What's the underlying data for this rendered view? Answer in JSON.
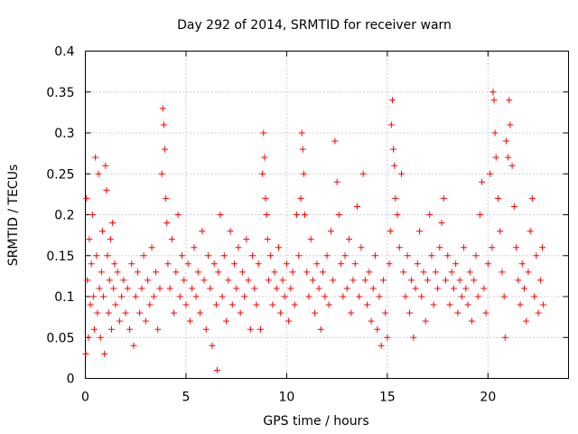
{
  "chart_data": {
    "type": "scatter",
    "title": "Day 292 of 2014, SRMTID for receiver warn",
    "xlabel": "GPS time / hours",
    "ylabel": "SRMTID / TECUs",
    "xlim": [
      0,
      24
    ],
    "ylim": [
      0,
      0.4
    ],
    "xticks": [
      0,
      5,
      10,
      15,
      20
    ],
    "xtick_labels": [
      "0",
      "5",
      "10",
      "15",
      "20"
    ],
    "yticks": [
      0,
      0.05,
      0.1,
      0.15,
      0.2,
      0.25,
      0.3,
      0.35,
      0.4
    ],
    "ytick_labels": [
      "0",
      "0.05",
      "0.1",
      "0.15",
      "0.2",
      "0.25",
      "0.3",
      "0.35",
      "0.4"
    ],
    "grid": true,
    "marker": "+",
    "color": "#ff0000",
    "series": [
      {
        "name": "SRMTID",
        "points": [
          [
            0.02,
            0.03
          ],
          [
            0.05,
            0.22
          ],
          [
            0.1,
            0.12
          ],
          [
            0.15,
            0.05
          ],
          [
            0.2,
            0.17
          ],
          [
            0.25,
            0.09
          ],
          [
            0.3,
            0.14
          ],
          [
            0.35,
            0.2
          ],
          [
            0.4,
            0.1
          ],
          [
            0.45,
            0.06
          ],
          [
            0.5,
            0.27
          ],
          [
            0.55,
            0.15
          ],
          [
            0.6,
            0.08
          ],
          [
            0.65,
            0.25
          ],
          [
            0.7,
            0.11
          ],
          [
            0.75,
            0.05
          ],
          [
            0.8,
            0.13
          ],
          [
            0.85,
            0.18
          ],
          [
            0.9,
            0.1
          ],
          [
            0.95,
            0.03
          ],
          [
            1.0,
            0.26
          ],
          [
            1.05,
            0.23
          ],
          [
            1.1,
            0.15
          ],
          [
            1.15,
            0.08
          ],
          [
            1.2,
            0.12
          ],
          [
            1.25,
            0.17
          ],
          [
            1.3,
            0.06
          ],
          [
            1.35,
            0.19
          ],
          [
            1.4,
            0.11
          ],
          [
            1.45,
            0.14
          ],
          [
            1.5,
            0.09
          ],
          [
            1.6,
            0.13
          ],
          [
            1.7,
            0.07
          ],
          [
            1.8,
            0.1
          ],
          [
            1.9,
            0.12
          ],
          [
            2.0,
            0.08
          ],
          [
            2.1,
            0.11
          ],
          [
            2.2,
            0.06
          ],
          [
            2.3,
            0.14
          ],
          [
            2.4,
            0.04
          ],
          [
            2.5,
            0.1
          ],
          [
            2.6,
            0.13
          ],
          [
            2.7,
            0.08
          ],
          [
            2.8,
            0.11
          ],
          [
            2.9,
            0.15
          ],
          [
            3.0,
            0.07
          ],
          [
            3.1,
            0.12
          ],
          [
            3.2,
            0.09
          ],
          [
            3.3,
            0.16
          ],
          [
            3.4,
            0.1
          ],
          [
            3.5,
            0.13
          ],
          [
            3.6,
            0.06
          ],
          [
            3.7,
            0.11
          ],
          [
            3.8,
            0.25
          ],
          [
            3.85,
            0.33
          ],
          [
            3.9,
            0.31
          ],
          [
            3.95,
            0.28
          ],
          [
            4.0,
            0.22
          ],
          [
            4.05,
            0.19
          ],
          [
            4.1,
            0.14
          ],
          [
            4.2,
            0.11
          ],
          [
            4.3,
            0.17
          ],
          [
            4.4,
            0.08
          ],
          [
            4.5,
            0.13
          ],
          [
            4.6,
            0.2
          ],
          [
            4.7,
            0.1
          ],
          [
            4.8,
            0.15
          ],
          [
            4.9,
            0.12
          ],
          [
            5.0,
            0.09
          ],
          [
            5.1,
            0.14
          ],
          [
            5.2,
            0.07
          ],
          [
            5.3,
            0.11
          ],
          [
            5.4,
            0.16
          ],
          [
            5.5,
            0.1
          ],
          [
            5.6,
            0.13
          ],
          [
            5.7,
            0.08
          ],
          [
            5.8,
            0.18
          ],
          [
            5.9,
            0.12
          ],
          [
            6.0,
            0.06
          ],
          [
            6.1,
            0.15
          ],
          [
            6.2,
            0.11
          ],
          [
            6.3,
            0.04
          ],
          [
            6.4,
            0.14
          ],
          [
            6.5,
            0.09
          ],
          [
            6.55,
            0.01
          ],
          [
            6.6,
            0.13
          ],
          [
            6.7,
            0.2
          ],
          [
            6.8,
            0.1
          ],
          [
            6.9,
            0.15
          ],
          [
            7.0,
            0.07
          ],
          [
            7.1,
            0.12
          ],
          [
            7.2,
            0.18
          ],
          [
            7.3,
            0.09
          ],
          [
            7.4,
            0.14
          ],
          [
            7.5,
            0.11
          ],
          [
            7.6,
            0.16
          ],
          [
            7.7,
            0.08
          ],
          [
            7.8,
            0.13
          ],
          [
            7.9,
            0.1
          ],
          [
            8.0,
            0.17
          ],
          [
            8.1,
            0.12
          ],
          [
            8.2,
            0.06
          ],
          [
            8.3,
            0.15
          ],
          [
            8.4,
            0.11
          ],
          [
            8.5,
            0.09
          ],
          [
            8.6,
            0.14
          ],
          [
            8.7,
            0.06
          ],
          [
            8.8,
            0.25
          ],
          [
            8.85,
            0.3
          ],
          [
            8.9,
            0.27
          ],
          [
            8.95,
            0.22
          ],
          [
            9.0,
            0.2
          ],
          [
            9.05,
            0.17
          ],
          [
            9.1,
            0.12
          ],
          [
            9.2,
            0.15
          ],
          [
            9.3,
            0.09
          ],
          [
            9.4,
            0.13
          ],
          [
            9.5,
            0.11
          ],
          [
            9.6,
            0.16
          ],
          [
            9.7,
            0.08
          ],
          [
            9.8,
            0.12
          ],
          [
            9.9,
            0.1
          ],
          [
            10.0,
            0.14
          ],
          [
            10.1,
            0.07
          ],
          [
            10.2,
            0.11
          ],
          [
            10.3,
            0.13
          ],
          [
            10.4,
            0.09
          ],
          [
            10.5,
            0.2
          ],
          [
            10.6,
            0.15
          ],
          [
            10.7,
            0.22
          ],
          [
            10.75,
            0.3
          ],
          [
            10.8,
            0.28
          ],
          [
            10.85,
            0.25
          ],
          [
            10.9,
            0.2
          ],
          [
            11.0,
            0.13
          ],
          [
            11.1,
            0.1
          ],
          [
            11.2,
            0.17
          ],
          [
            11.3,
            0.12
          ],
          [
            11.4,
            0.08
          ],
          [
            11.5,
            0.14
          ],
          [
            11.6,
            0.11
          ],
          [
            11.7,
            0.06
          ],
          [
            11.8,
            0.13
          ],
          [
            11.9,
            0.1
          ],
          [
            12.0,
            0.15
          ],
          [
            12.1,
            0.09
          ],
          [
            12.2,
            0.18
          ],
          [
            12.3,
            0.12
          ],
          [
            12.4,
            0.29
          ],
          [
            12.5,
            0.24
          ],
          [
            12.6,
            0.2
          ],
          [
            12.7,
            0.14
          ],
          [
            12.8,
            0.1
          ],
          [
            12.9,
            0.15
          ],
          [
            13.0,
            0.11
          ],
          [
            13.1,
            0.17
          ],
          [
            13.2,
            0.08
          ],
          [
            13.3,
            0.12
          ],
          [
            13.4,
            0.14
          ],
          [
            13.5,
            0.21
          ],
          [
            13.6,
            0.1
          ],
          [
            13.7,
            0.16
          ],
          [
            13.8,
            0.25
          ],
          [
            13.9,
            0.12
          ],
          [
            14.0,
            0.09
          ],
          [
            14.1,
            0.13
          ],
          [
            14.2,
            0.07
          ],
          [
            14.3,
            0.11
          ],
          [
            14.4,
            0.15
          ],
          [
            14.5,
            0.06
          ],
          [
            14.6,
            0.1
          ],
          [
            14.7,
            0.04
          ],
          [
            14.8,
            0.12
          ],
          [
            14.9,
            0.08
          ],
          [
            15.0,
            0.05
          ],
          [
            15.1,
            0.14
          ],
          [
            15.15,
            0.18
          ],
          [
            15.2,
            0.31
          ],
          [
            15.25,
            0.34
          ],
          [
            15.3,
            0.28
          ],
          [
            15.35,
            0.26
          ],
          [
            15.4,
            0.22
          ],
          [
            15.5,
            0.2
          ],
          [
            15.6,
            0.16
          ],
          [
            15.7,
            0.25
          ],
          [
            15.8,
            0.13
          ],
          [
            15.9,
            0.1
          ],
          [
            16.0,
            0.15
          ],
          [
            16.1,
            0.08
          ],
          [
            16.2,
            0.12
          ],
          [
            16.3,
            0.05
          ],
          [
            16.4,
            0.11
          ],
          [
            16.5,
            0.14
          ],
          [
            16.6,
            0.18
          ],
          [
            16.7,
            0.1
          ],
          [
            16.8,
            0.13
          ],
          [
            16.9,
            0.07
          ],
          [
            17.0,
            0.12
          ],
          [
            17.1,
            0.2
          ],
          [
            17.2,
            0.15
          ],
          [
            17.3,
            0.09
          ],
          [
            17.4,
            0.13
          ],
          [
            17.5,
            0.11
          ],
          [
            17.6,
            0.16
          ],
          [
            17.7,
            0.19
          ],
          [
            17.8,
            0.22
          ],
          [
            17.9,
            0.12
          ],
          [
            18.0,
            0.15
          ],
          [
            18.1,
            0.09
          ],
          [
            18.2,
            0.13
          ],
          [
            18.3,
            0.11
          ],
          [
            18.4,
            0.14
          ],
          [
            18.5,
            0.08
          ],
          [
            18.6,
            0.12
          ],
          [
            18.7,
            0.1
          ],
          [
            18.8,
            0.16
          ],
          [
            18.9,
            0.11
          ],
          [
            19.0,
            0.09
          ],
          [
            19.1,
            0.13
          ],
          [
            19.2,
            0.07
          ],
          [
            19.3,
            0.12
          ],
          [
            19.4,
            0.15
          ],
          [
            19.5,
            0.1
          ],
          [
            19.6,
            0.2
          ],
          [
            19.7,
            0.24
          ],
          [
            19.8,
            0.11
          ],
          [
            19.9,
            0.08
          ],
          [
            20.0,
            0.14
          ],
          [
            20.1,
            0.25
          ],
          [
            20.2,
            0.16
          ],
          [
            20.25,
            0.35
          ],
          [
            20.3,
            0.34
          ],
          [
            20.35,
            0.3
          ],
          [
            20.4,
            0.27
          ],
          [
            20.5,
            0.22
          ],
          [
            20.6,
            0.18
          ],
          [
            20.7,
            0.13
          ],
          [
            20.8,
            0.1
          ],
          [
            20.85,
            0.05
          ],
          [
            20.9,
            0.29
          ],
          [
            21.0,
            0.27
          ],
          [
            21.05,
            0.34
          ],
          [
            21.1,
            0.31
          ],
          [
            21.2,
            0.26
          ],
          [
            21.3,
            0.21
          ],
          [
            21.4,
            0.16
          ],
          [
            21.5,
            0.12
          ],
          [
            21.6,
            0.09
          ],
          [
            21.7,
            0.14
          ],
          [
            21.8,
            0.11
          ],
          [
            21.9,
            0.07
          ],
          [
            22.0,
            0.13
          ],
          [
            22.1,
            0.18
          ],
          [
            22.2,
            0.22
          ],
          [
            22.3,
            0.1
          ],
          [
            22.4,
            0.15
          ],
          [
            22.5,
            0.08
          ],
          [
            22.6,
            0.12
          ],
          [
            22.7,
            0.16
          ],
          [
            22.75,
            0.09
          ]
        ]
      }
    ]
  }
}
